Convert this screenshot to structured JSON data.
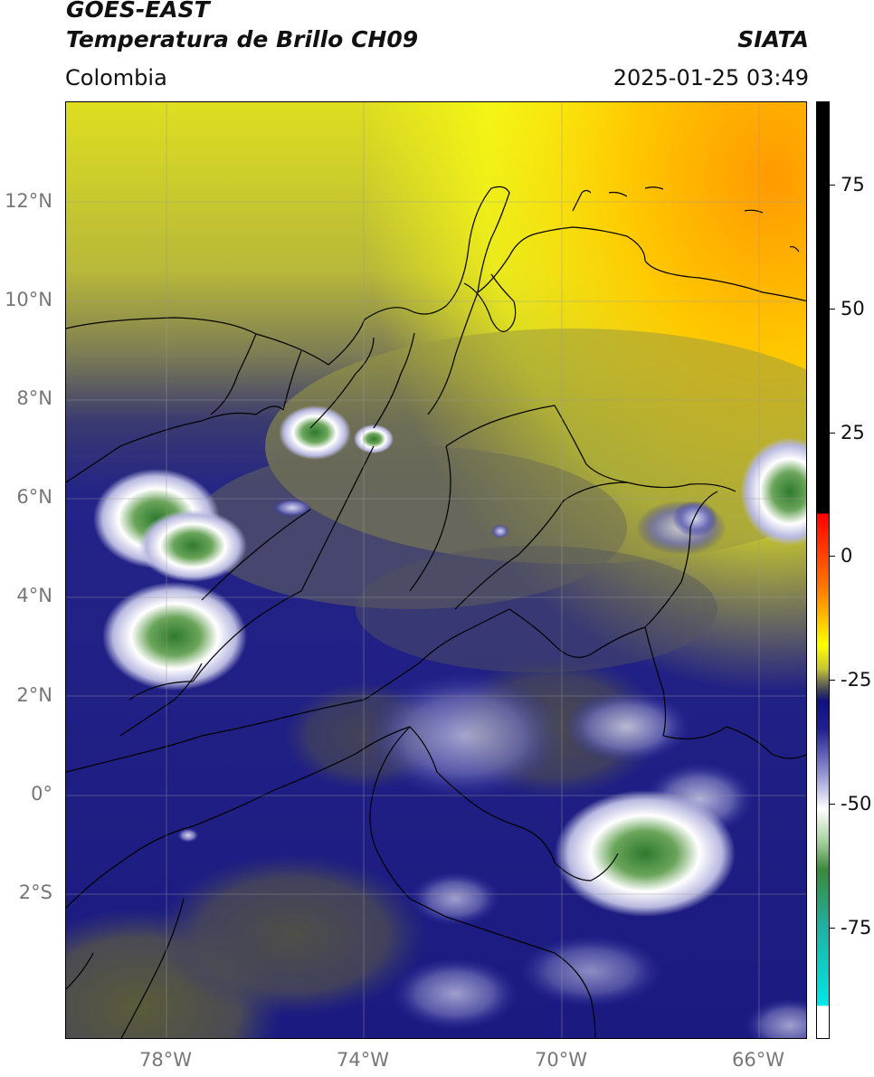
{
  "header": {
    "title_line1": "GOES-EAST",
    "title_line2": "Temperatura de Brillo CH09",
    "brand": "SIATA",
    "region": "Colombia",
    "timestamp": "2025-01-25 03:49"
  },
  "map": {
    "latitude_labels": [
      "12°N",
      "10°N",
      "8°N",
      "6°N",
      "4°N",
      "2°N",
      "0°",
      "2°S"
    ],
    "longitude_labels": [
      "78°W",
      "74°W",
      "70°W",
      "66°W"
    ],
    "grid": true
  },
  "colorbar": {
    "tick_labels": [
      "75",
      "50",
      "25",
      "0",
      "-25",
      "-50",
      "-75"
    ],
    "colors": {
      "top_black": "#000000",
      "red": "#ff0000",
      "orange": "#ff8c00",
      "yellow": "#ffff00",
      "olive": "#a8a830",
      "gray_olive": "#5a5a4a",
      "navy": "#141480",
      "white": "#ffffff",
      "green": "#3a8a3a",
      "teal": "#20c0a0",
      "cyan": "#00e8e8"
    }
  }
}
